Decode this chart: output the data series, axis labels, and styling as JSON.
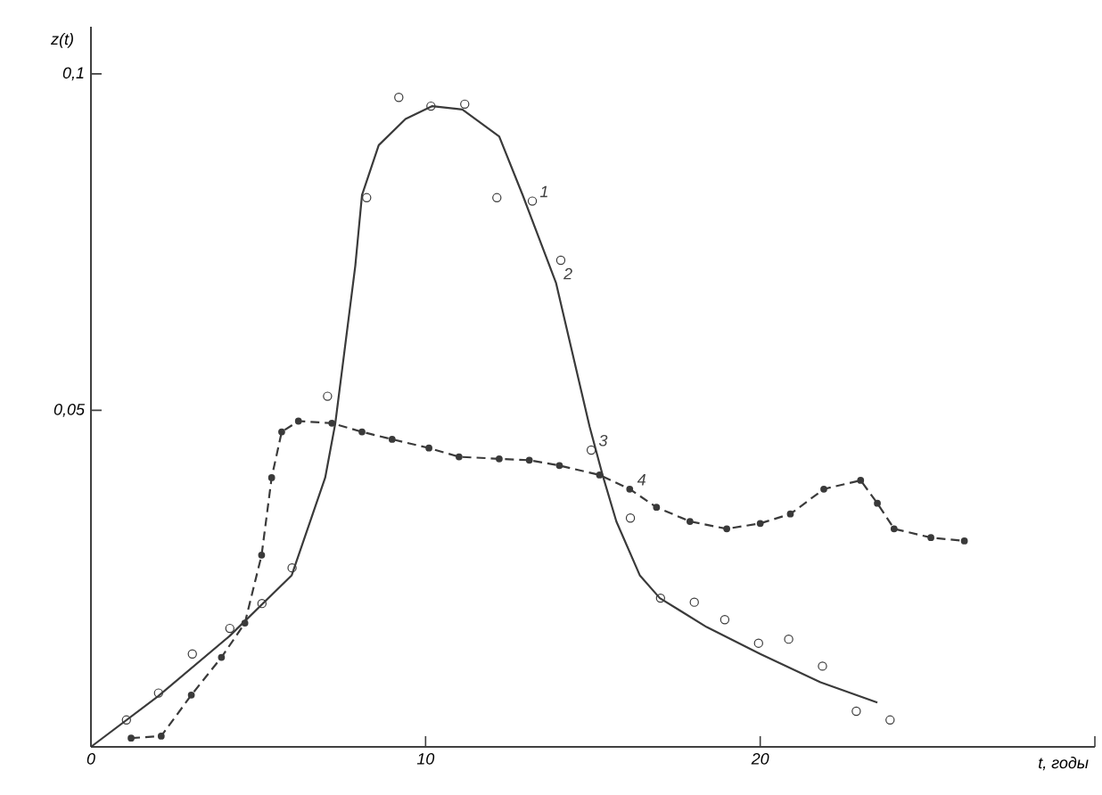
{
  "chart_data": {
    "type": "line",
    "xlabel": "t, годы",
    "ylabel": "z(t)",
    "xlim": [
      0,
      30
    ],
    "ylim": [
      0,
      0.107
    ],
    "xticks": [
      0,
      10,
      20,
      {
        "value": 30,
        "label": null
      }
    ],
    "yticks": [
      {
        "value": 0.05,
        "label": "0,05"
      },
      {
        "value": 0.1,
        "label": "0,1"
      }
    ],
    "series": [
      {
        "type": "scatter",
        "color": "#3a3a3a",
        "marker": "circle",
        "x": [
          1.06,
          2.02,
          3.03,
          4.15,
          5.11,
          6.01,
          7.07,
          8.24,
          9.2,
          10.16,
          11.17,
          12.13,
          13.19,
          14.04,
          14.95,
          16.12,
          17.02,
          18.03,
          18.94,
          19.95,
          20.85,
          21.86,
          22.87,
          23.88
        ],
        "values": [
          0.004,
          0.008,
          0.0138,
          0.0176,
          0.0213,
          0.0266,
          0.0521,
          0.0816,
          0.0965,
          0.0952,
          0.0955,
          0.0816,
          0.0811,
          0.0723,
          0.0441,
          0.034,
          0.0221,
          0.0215,
          0.0189,
          0.0154,
          0.016,
          0.012,
          0.0053,
          0.004
        ]
      },
      {
        "color": "#3a3a3a",
        "line_style": "solid",
        "marker": "none",
        "x": [
          0,
          2,
          4.15,
          6,
          7,
          7.3,
          7.9,
          8.1,
          8.6,
          9.4,
          10.2,
          11.1,
          12.2,
          12.9,
          13.9,
          14.9,
          15.3,
          15.7,
          16.4,
          17,
          18.4,
          20,
          21.8,
          23.5
        ],
        "values": [
          0,
          0.0075,
          0.0165,
          0.0255,
          0.04,
          0.048,
          0.0715,
          0.082,
          0.0894,
          0.0933,
          0.0952,
          0.0947,
          0.0907,
          0.082,
          0.0689,
          0.0476,
          0.0402,
          0.0335,
          0.0255,
          0.0221,
          0.0178,
          0.0138,
          0.0096,
          0.0066
        ]
      },
      {
        "color": "#3a3a3a",
        "line_style": "dashed",
        "marker": "circle",
        "x": [
          1.2,
          2.1,
          3,
          3.9,
          4.6,
          5.1,
          5.4,
          5.7,
          6.2,
          7.2,
          8.1,
          9,
          10.1,
          11,
          12.2,
          13.1,
          14,
          15.2,
          16.1,
          16.9,
          17.9,
          19,
          20,
          20.9,
          21.9,
          23,
          23.5,
          24,
          25.1,
          26.1
        ],
        "values": [
          0.0013,
          0.0016,
          0.0077,
          0.0133,
          0.0184,
          0.0285,
          0.04,
          0.0468,
          0.0484,
          0.0481,
          0.0468,
          0.0457,
          0.0444,
          0.0431,
          0.0428,
          0.0426,
          0.0418,
          0.0404,
          0.0383,
          0.0356,
          0.0335,
          0.0324,
          0.0332,
          0.0346,
          0.0383,
          0.0396,
          0.0362,
          0.0324,
          0.0311,
          0.0306
        ]
      }
    ],
    "annotations": [
      {
        "text": "1",
        "x": 13.19,
        "y": 0.0811
      },
      {
        "text": "2",
        "x": 13.9,
        "y": 0.0689
      },
      {
        "text": "3",
        "x": 14.95,
        "y": 0.0441
      },
      {
        "text": "4",
        "x": 16.1,
        "y": 0.0383
      }
    ]
  }
}
